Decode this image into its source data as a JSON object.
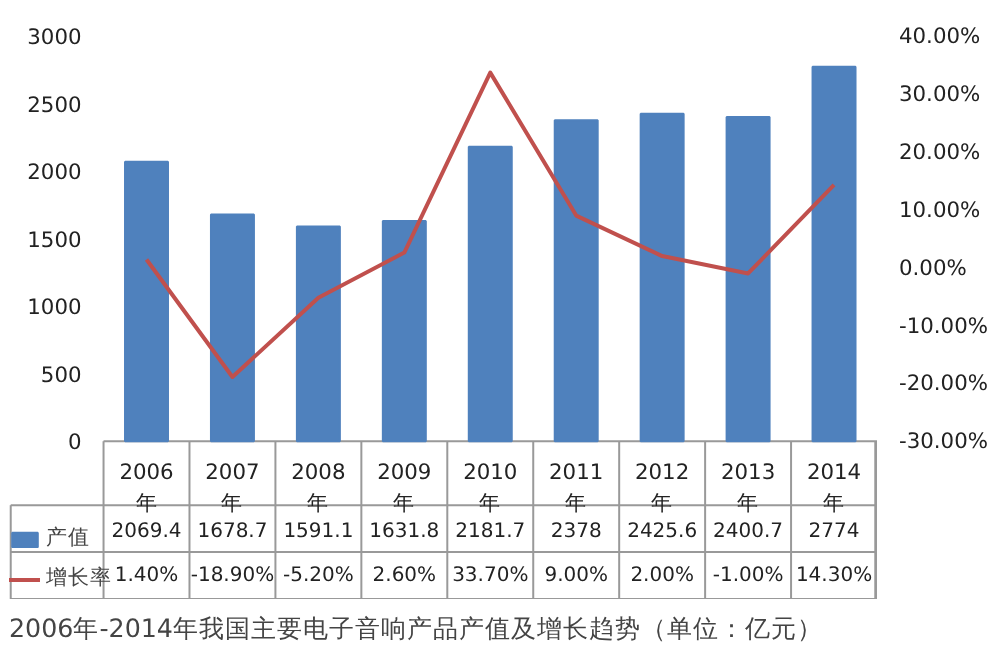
{
  "chart_data": {
    "type": "bar",
    "title": "2006年-2014年我国主要电子音响产品产值及增长趋势（单位：亿元）",
    "categories": [
      "2006年",
      "2007年",
      "2008年",
      "2009年",
      "2010年",
      "2011年",
      "2012年",
      "2013年",
      "2014年"
    ],
    "series": [
      {
        "name": "产值",
        "color": "#4f81bd",
        "values": [
          2069.4,
          1678.7,
          1591.1,
          1631.8,
          2181.7,
          2378,
          2425.6,
          2400.7,
          2774
        ],
        "value_labels": [
          "2069.4",
          "1678.7",
          "1591.1",
          "1631.8",
          "2181.7",
          "2378",
          "2425.6",
          "2400.7",
          "2774"
        ]
      },
      {
        "name": "增长率",
        "type": "line",
        "axis": "y2",
        "color": "#c0504d",
        "values": [
          1.4,
          -18.9,
          -5.2,
          2.6,
          33.7,
          9.0,
          2.0,
          -1.0,
          14.3
        ],
        "value_labels": [
          "1.40%",
          "-18.90%",
          "-5.20%",
          "2.60%",
          "33.70%",
          "9.00%",
          "2.00%",
          "-1.00%",
          "14.30%"
        ]
      }
    ],
    "ylim": [
      0,
      3000
    ],
    "yticks": [
      0,
      500,
      1000,
      1500,
      2000,
      2500,
      3000
    ],
    "y2lim": [
      -30,
      40
    ],
    "y2ticks": [
      {
        "value": -30,
        "label": "-30.00%"
      },
      {
        "value": -20,
        "label": "-20.00%"
      },
      {
        "value": -10,
        "label": "-10.00%"
      },
      {
        "value": 0,
        "label": "0.00%"
      },
      {
        "value": 10,
        "label": "10.00%"
      },
      {
        "value": 20,
        "label": "20.00%"
      },
      {
        "value": 30,
        "label": "30.00%"
      },
      {
        "value": 40,
        "label": "40.00%"
      }
    ],
    "grid": false,
    "legend": "bottom left",
    "marker": "none",
    "line_style": "solid"
  }
}
